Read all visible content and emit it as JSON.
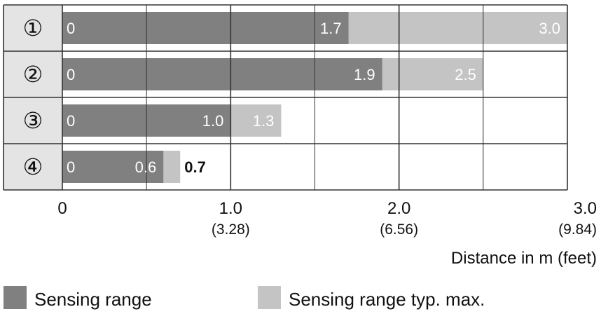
{
  "chart_data": {
    "type": "bar",
    "orientation": "horizontal",
    "stacked_overlay": true,
    "categories": [
      "①",
      "②",
      "③",
      "④"
    ],
    "series": [
      {
        "name": "Sensing range",
        "values": [
          1.7,
          1.9,
          1.0,
          0.6
        ],
        "color": "#808080"
      },
      {
        "name": "Sensing range typ. max.",
        "values": [
          3.0,
          2.5,
          1.3,
          0.7
        ],
        "color": "#c4c4c4"
      }
    ],
    "start_label": "0",
    "xlim": [
      0,
      3.0
    ],
    "grid_step": 0.5,
    "x_ticks": [
      {
        "value": 0,
        "label": "0",
        "sublabel": ""
      },
      {
        "value": 1.0,
        "label": "1.0",
        "sublabel": "(3.28)"
      },
      {
        "value": 2.0,
        "label": "2.0",
        "sublabel": "(6.56)"
      },
      {
        "value": 3.0,
        "label": "3.0",
        "sublabel": "(9.84)"
      }
    ],
    "xlabel": "Distance in m (feet)",
    "ylabel": "",
    "title": "",
    "grid": true,
    "legend_position": "bottom"
  },
  "colors": {
    "range": "#808080",
    "max": "#c4c4c4",
    "row_label_bg": "#e4e4e4",
    "grid": "#333333"
  }
}
